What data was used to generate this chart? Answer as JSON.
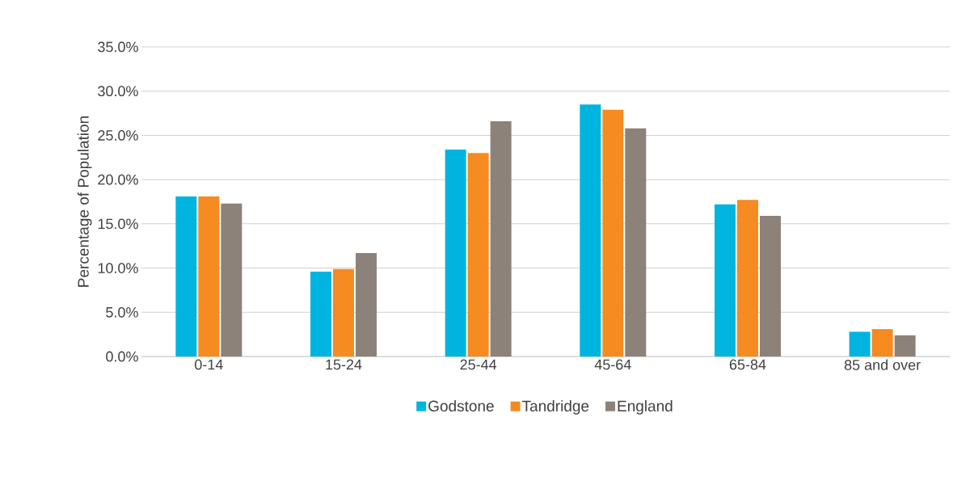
{
  "chart_data": {
    "type": "bar",
    "ylabel": "Percentage of Population",
    "categories": [
      "0-14",
      "15-24",
      "25-44",
      "45-64",
      "65-84",
      "85 and over"
    ],
    "series": [
      {
        "name": "Godstone",
        "color": "#00b4e0",
        "values": [
          18.1,
          9.6,
          23.4,
          28.5,
          17.2,
          2.8
        ]
      },
      {
        "name": "Tandridge",
        "color": "#f58b21",
        "values": [
          18.1,
          9.9,
          23.0,
          27.9,
          17.7,
          3.1
        ]
      },
      {
        "name": "England",
        "color": "#8c8279",
        "values": [
          17.3,
          11.7,
          26.6,
          25.8,
          15.9,
          2.4
        ]
      }
    ],
    "ylim": [
      0,
      35
    ],
    "yticks": [
      {
        "value": 0,
        "label": "0.0%"
      },
      {
        "value": 5,
        "label": "5.0%"
      },
      {
        "value": 10,
        "label": "10.0%"
      },
      {
        "value": 15,
        "label": "15.0%"
      },
      {
        "value": 20,
        "label": "20.0%"
      },
      {
        "value": 25,
        "label": "25.0%"
      },
      {
        "value": 30,
        "label": "30.0%"
      },
      {
        "value": 35,
        "label": "35.0%"
      }
    ],
    "grid": "y",
    "legend": "bottom"
  }
}
